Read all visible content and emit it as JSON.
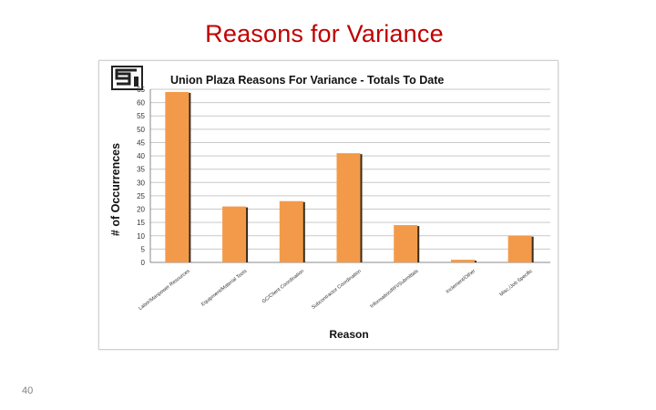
{
  "slide": {
    "title": "Reasons for Variance",
    "page_number": "40"
  },
  "logo": {
    "text": "SI"
  },
  "colors": {
    "title": "#c00000",
    "bar": "#f39a4a",
    "bar_edge": "#3a2a1a",
    "grid": "#c9c9c9"
  },
  "chart_data": {
    "type": "bar",
    "title": "Union Plaza Reasons For Variance - Totals To Date",
    "xlabel": "Reason",
    "ylabel": "# of Occurrences",
    "ylim": [
      0,
      65
    ],
    "yticks": [
      0,
      5,
      10,
      15,
      20,
      25,
      30,
      35,
      40,
      45,
      50,
      55,
      60,
      65
    ],
    "grid": true,
    "categories": [
      "Labor/Manpower Resources",
      "Equipment/Material Tools",
      "GC/Client Coordination",
      "Subcontractor Coordination",
      "Information/RFI/Submittals",
      "Inclement/Other",
      "Misc./Job Specific"
    ],
    "values": [
      64,
      21,
      23,
      41,
      14,
      1,
      10
    ]
  }
}
